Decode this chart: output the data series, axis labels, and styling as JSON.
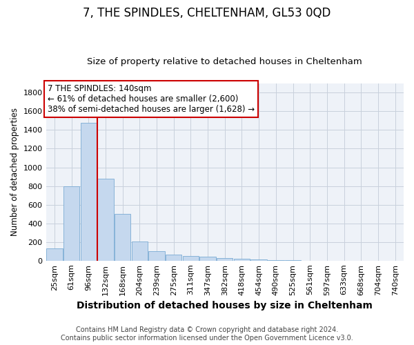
{
  "title": "7, THE SPINDLES, CHELTENHAM, GL53 0QD",
  "subtitle": "Size of property relative to detached houses in Cheltenham",
  "xlabel": "Distribution of detached houses by size in Cheltenham",
  "ylabel": "Number of detached properties",
  "categories": [
    "25sqm",
    "61sqm",
    "96sqm",
    "132sqm",
    "168sqm",
    "204sqm",
    "239sqm",
    "275sqm",
    "311sqm",
    "347sqm",
    "382sqm",
    "418sqm",
    "454sqm",
    "490sqm",
    "525sqm",
    "561sqm",
    "597sqm",
    "633sqm",
    "668sqm",
    "704sqm",
    "740sqm"
  ],
  "values": [
    130,
    800,
    1480,
    880,
    500,
    205,
    105,
    65,
    50,
    40,
    30,
    20,
    10,
    5,
    3,
    2,
    2,
    1,
    1,
    1,
    1
  ],
  "bar_color": "#c5d8ee",
  "bar_edge_color": "#7aabd4",
  "vline_x_index": 3,
  "vline_color": "#cc0000",
  "annotation_line1": "7 THE SPINDLES: 140sqm",
  "annotation_line2": "← 61% of detached houses are smaller (2,600)",
  "annotation_line3": "38% of semi-detached houses are larger (1,628) →",
  "annotation_box_color": "#ffffff",
  "annotation_box_edge_color": "#cc0000",
  "ylim": [
    0,
    1900
  ],
  "yticks": [
    0,
    200,
    400,
    600,
    800,
    1000,
    1200,
    1400,
    1600,
    1800
  ],
  "footer_line1": "Contains HM Land Registry data © Crown copyright and database right 2024.",
  "footer_line2": "Contains public sector information licensed under the Open Government Licence v3.0.",
  "fig_bg_color": "#ffffff",
  "plot_bg_color": "#eef2f8",
  "grid_color": "#c8d0dc",
  "title_fontsize": 12,
  "subtitle_fontsize": 9.5,
  "xlabel_fontsize": 10,
  "ylabel_fontsize": 8.5,
  "tick_fontsize": 8,
  "annotation_fontsize": 8.5,
  "footer_fontsize": 7
}
